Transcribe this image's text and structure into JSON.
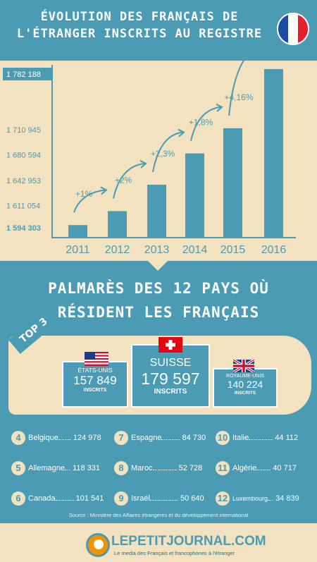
{
  "header": {
    "title_line1": "Évolution des Français de",
    "title_line2": "l'étranger inscrits au registre"
  },
  "colors": {
    "teal": "#4a9bb3",
    "cream": "#f3e2c0",
    "white": "#ffffff",
    "orange": "#f39200"
  },
  "chart_data": {
    "type": "bar",
    "categories": [
      "2011",
      "2012",
      "2013",
      "2014",
      "2015",
      "2016"
    ],
    "values": [
      1594303,
      1611054,
      1642953,
      1680594,
      1710945,
      1782188
    ],
    "value_labels": [
      "1 594 303",
      "1 611 054",
      "1 642 953",
      "1 680 594",
      "1 710 945",
      "1 782 188"
    ],
    "growth_labels": [
      "+1%",
      "+2%",
      "+2,3%",
      "+1,8%",
      "+4,16%"
    ],
    "title": "",
    "xlabel": "",
    "ylabel": "",
    "grid": false
  },
  "palmares": {
    "line1": "Palmarès des 12 pays où",
    "line2": "résident les Français",
    "top3_label": "TOP 3"
  },
  "podium": [
    {
      "country": "ÉTATS-UNIS",
      "value": "157 849",
      "unit": "INSCRITS",
      "flag": "us-flag-icon"
    },
    {
      "country": "SUISSE",
      "value": "179 597",
      "unit": "INSCRITS",
      "flag": "swiss-flag-icon"
    },
    {
      "country": "ROYAUME-UNIS",
      "value": "140 224",
      "unit": "INSCRITS",
      "flag": "uk-flag-icon"
    }
  ],
  "ranking": [
    {
      "rank": "4",
      "country": "Belgique",
      "value": "124 978"
    },
    {
      "rank": "5",
      "country": "Allemagne",
      "value": "118 331"
    },
    {
      "rank": "6",
      "country": "Canada",
      "value": "101 541"
    },
    {
      "rank": "7",
      "country": "Espagne",
      "value": "84 730"
    },
    {
      "rank": "8",
      "country": "Maroc",
      "value": "52 728"
    },
    {
      "rank": "9",
      "country": "Israël",
      "value": "50 640"
    },
    {
      "rank": "10",
      "country": "Italie",
      "value": "44 112"
    },
    {
      "rank": "11",
      "country": "Algérie",
      "value": "40 717"
    },
    {
      "rank": "12",
      "country": "Luxembourg",
      "value": "34 839"
    }
  ],
  "source": "Source : Ministère des Affaires étrangères et du développement international",
  "footer": {
    "brand": "LEPETITJOURNAL.COM",
    "tagline": "Le media des Français et francophones à l'étranger"
  }
}
